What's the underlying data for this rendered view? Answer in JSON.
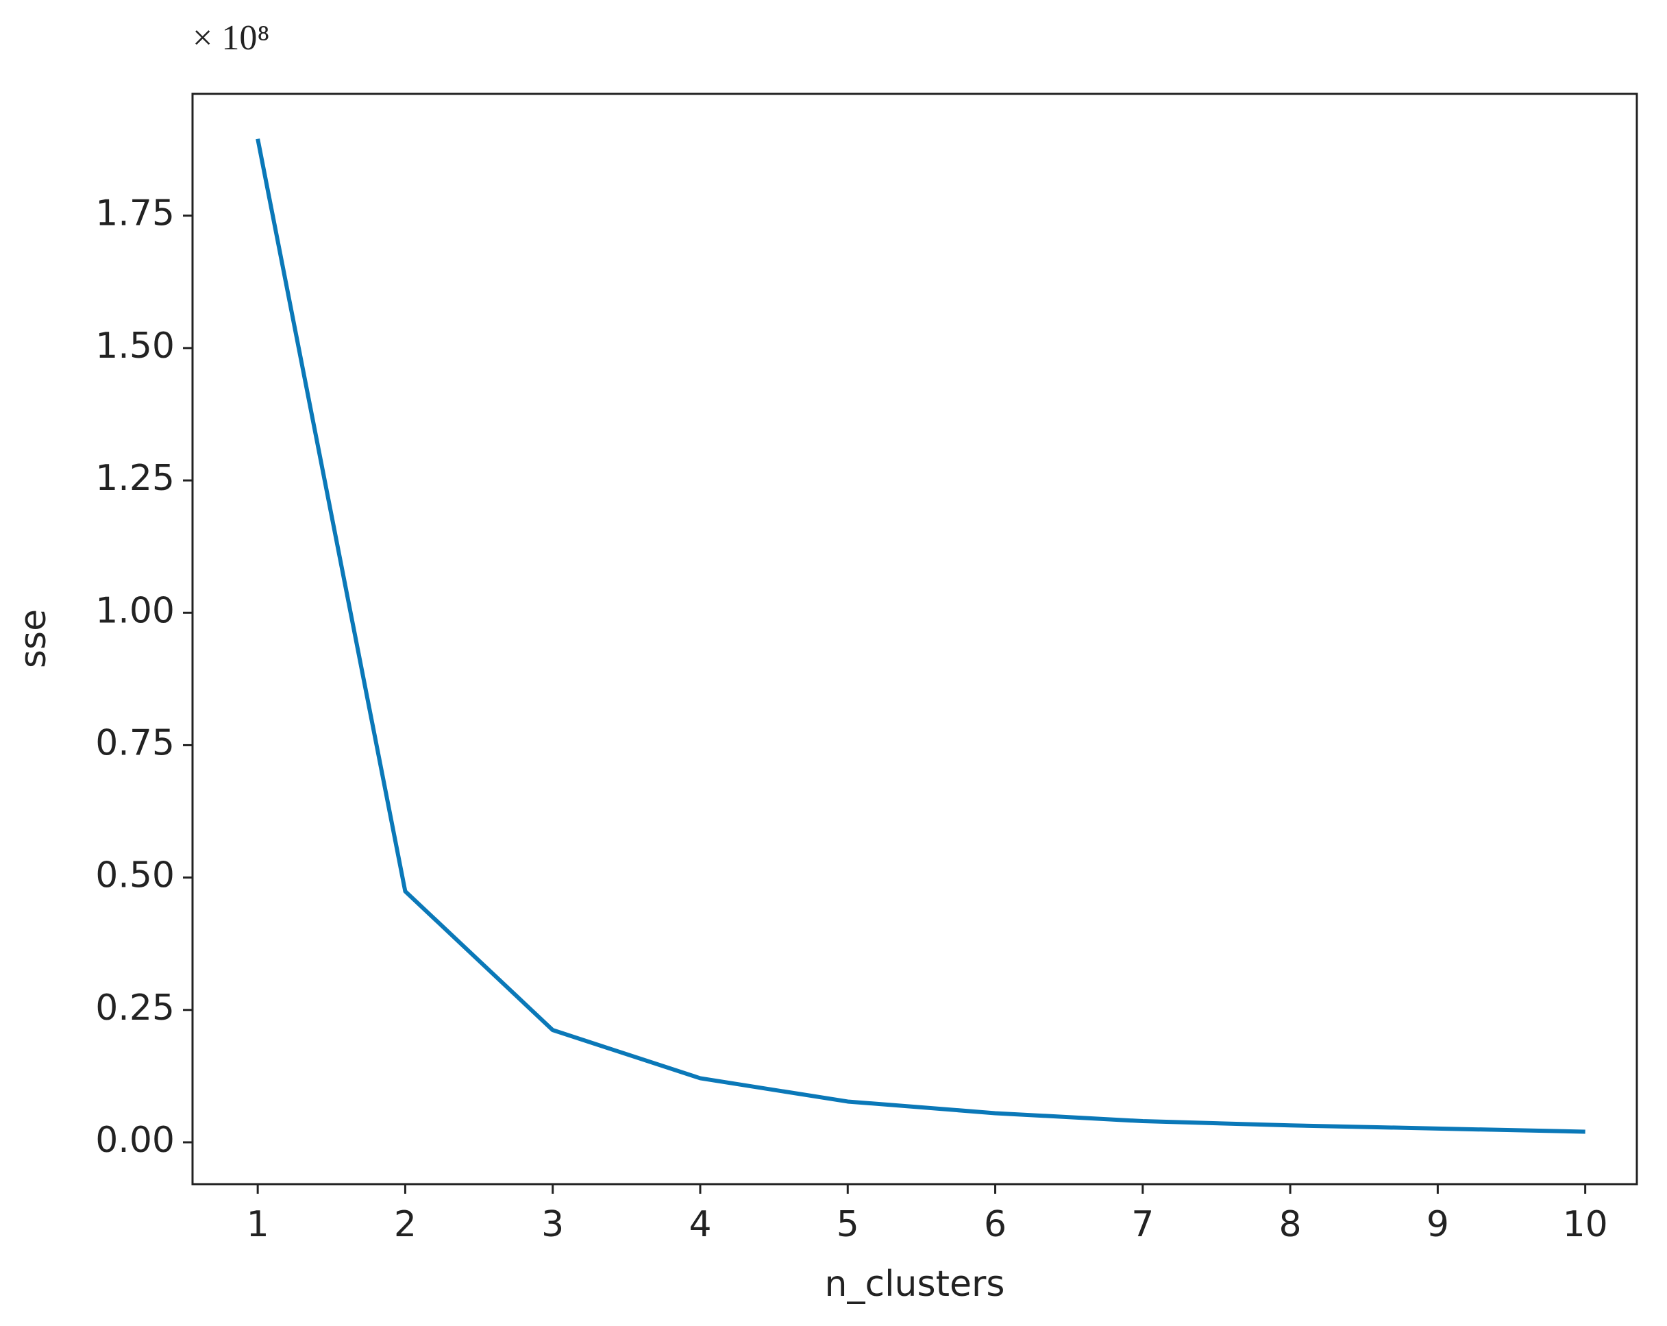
{
  "chart_data": {
    "type": "line",
    "x_label": "n_clusters",
    "y_label": "sse",
    "y_offset_text": "× 10⁸",
    "x": [
      1,
      2,
      3,
      4,
      5,
      6,
      7,
      8,
      9,
      10
    ],
    "values": [
      1.895,
      0.474,
      0.212,
      0.121,
      0.077,
      0.055,
      0.04,
      0.032,
      0.026,
      0.02
    ],
    "color": "#0a78b8",
    "xlim": [
      0.558,
      10.35
    ],
    "ylim": [
      -0.079,
      1.98
    ],
    "xticks": [
      1,
      2,
      3,
      4,
      5,
      6,
      7,
      8,
      9,
      10
    ],
    "yticks": [
      {
        "value": 0,
        "label": "0.00"
      },
      0.25,
      {
        "value": 0.5,
        "label": "0.50"
      },
      0.75,
      {
        "value": 1,
        "label": "1.00"
      },
      1.25,
      {
        "value": 1.5,
        "label": "1.50"
      },
      1.75
    ],
    "grid": false
  }
}
